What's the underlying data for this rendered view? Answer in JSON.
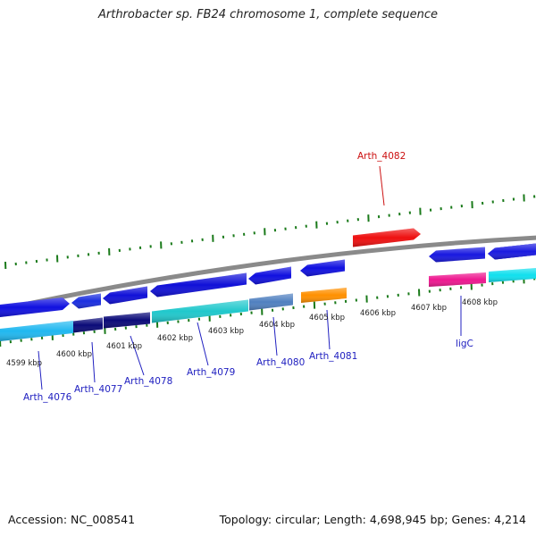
{
  "title": "Arthrobacter sp. FB24 chromosome 1, complete sequence",
  "footer": {
    "accession": "Accession: NC_008541",
    "topology": "Topology: circular; Length: 4,698,945 bp; Genes: 4,214"
  },
  "colors": {
    "backbone": "#8a8a8a",
    "ticks": "#1a7a1a",
    "gene_label": "#2020c0",
    "highlight_label": "#cc1010"
  },
  "kbp_labels": [
    "4599 kbp",
    "4600 kbp",
    "4601 kbp",
    "4602 kbp",
    "4603 kbp",
    "4604 kbp",
    "4605 kbp",
    "4606 kbp",
    "4607 kbp",
    "4608 kbp"
  ],
  "gene_labels": [
    {
      "text": "Arth_4076",
      "color": "#2020c0"
    },
    {
      "text": "Arth_4077",
      "color": "#2020c0"
    },
    {
      "text": "Arth_4078",
      "color": "#2020c0"
    },
    {
      "text": "Arth_4079",
      "color": "#2020c0"
    },
    {
      "text": "Arth_4080",
      "color": "#2020c0"
    },
    {
      "text": "Arth_4081",
      "color": "#2020c0"
    },
    {
      "text": "ligC",
      "color": "#2020c0"
    },
    {
      "text": "Arth_4082",
      "color": "#cc1010"
    }
  ],
  "features": [
    {
      "color": "#1010e0",
      "strand": "forward"
    },
    {
      "color": "#1a2ee0",
      "strand": "reverse"
    },
    {
      "color": "#1010d8",
      "strand": "reverse"
    },
    {
      "color": "#1010d8",
      "strand": "reverse"
    },
    {
      "color": "#1010e0",
      "strand": "reverse"
    },
    {
      "color": "#1010e0",
      "strand": "reverse"
    },
    {
      "color": "#1818e0",
      "strand": "reverse"
    },
    {
      "color": "#ee1010",
      "strand": "forward"
    },
    {
      "color": "#1a1ae0",
      "strand": "reverse"
    },
    {
      "color": "#1a1ae0",
      "strand": "reverse"
    },
    {
      "color": "#20b8f0",
      "strand": "band"
    },
    {
      "color": "#0a0a78",
      "strand": "band"
    },
    {
      "color": "#0a0a78",
      "strand": "band"
    },
    {
      "color": "#20c8cc",
      "strand": "band"
    },
    {
      "color": "#5080c0",
      "strand": "band"
    },
    {
      "color": "#ff9000",
      "strand": "band"
    },
    {
      "color": "#ee1890",
      "strand": "band"
    },
    {
      "color": "#10e0ee",
      "strand": "band"
    }
  ]
}
